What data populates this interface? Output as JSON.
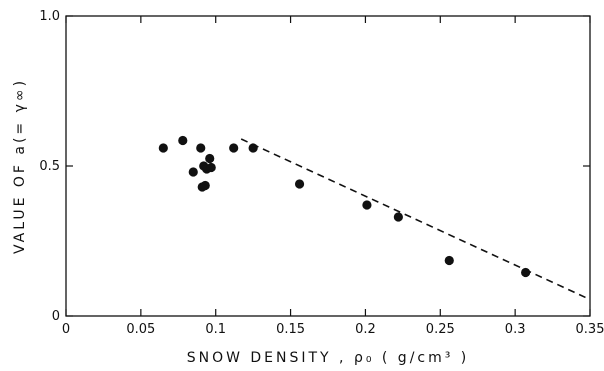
{
  "chart_data": {
    "type": "scatter",
    "xlabel": "SNOW DENSITY , ρ₀ ( g/cm³ )",
    "ylabel": "VALUE OF a(= γ∞)",
    "xlim": [
      0,
      0.35
    ],
    "ylim": [
      0,
      1.0
    ],
    "x_ticks": [
      {
        "value": 0,
        "label": "0"
      },
      {
        "value": 0.05,
        "label": "0.05"
      },
      {
        "value": 0.1,
        "label": "0.1"
      },
      {
        "value": 0.15,
        "label": "0.15"
      },
      {
        "value": 0.2,
        "label": "0.2"
      },
      {
        "value": 0.25,
        "label": "0.25"
      },
      {
        "value": 0.3,
        "label": "0.3"
      },
      {
        "value": 0.35,
        "label": "0.35"
      }
    ],
    "y_ticks": [
      {
        "value": 0,
        "label": "0"
      },
      {
        "value": 0.5,
        "label": "0.5"
      },
      {
        "value": 1.0,
        "label": "1.0"
      }
    ],
    "grid": false,
    "series": [
      {
        "style": "markers",
        "x": [
          0.065,
          0.078,
          0.085,
          0.09,
          0.091,
          0.092,
          0.093,
          0.094,
          0.096,
          0.097,
          0.112,
          0.125,
          0.156,
          0.201,
          0.222,
          0.256,
          0.307
        ],
        "y": [
          0.56,
          0.585,
          0.48,
          0.56,
          0.43,
          0.5,
          0.435,
          0.49,
          0.525,
          0.495,
          0.56,
          0.56,
          0.44,
          0.37,
          0.33,
          0.185,
          0.145
        ]
      },
      {
        "style": "dashed-line",
        "x": [
          0.117,
          0.35
        ],
        "y": [
          0.59,
          0.055
        ]
      }
    ]
  }
}
